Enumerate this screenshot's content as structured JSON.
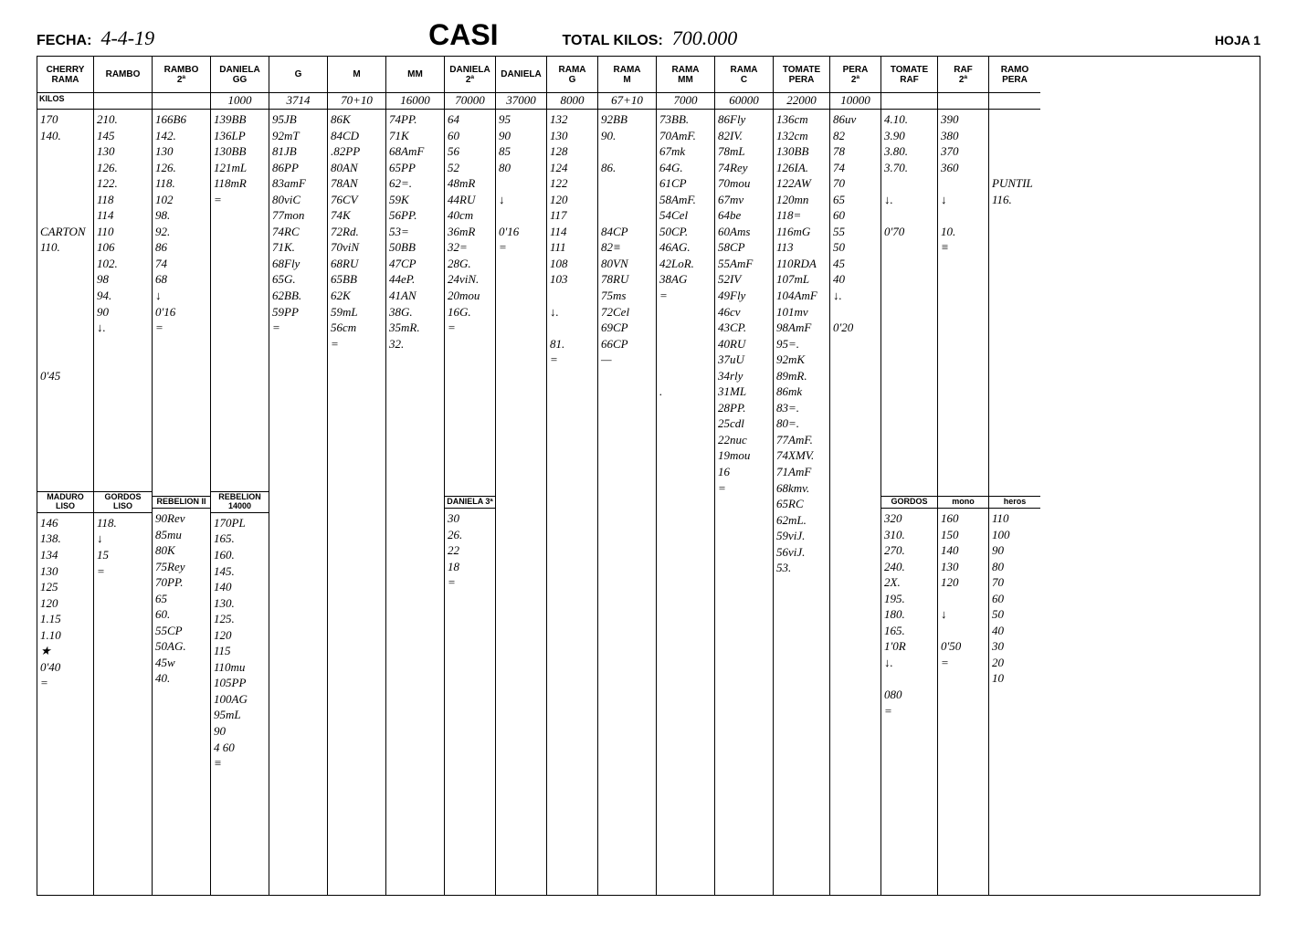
{
  "header": {
    "fecha_label": "FECHA:",
    "fecha_value": "4-4-19",
    "title": "CASI",
    "total_label": "TOTAL KILOS:",
    "total_value": "700.000",
    "hoja": "HOJA 1",
    "kilos_label": "KILOS"
  },
  "columns": [
    {
      "w": "w-cherry",
      "h1": "CHERRY",
      "h2": "RAMA",
      "kilos": "",
      "body": "170\n140.\n\n\n\n\n\nCARTON\n110.\n\n\n\n\n\n\n\n0'45",
      "sub": {
        "h": "MADURO\nLISO",
        "body": "146\n138.\n134\n130\n125\n120\n1.15\n1.10\n★\n0'40\n="
      }
    },
    {
      "w": "w-std",
      "h1": "RAMBO",
      "h2": "",
      "kilos": "",
      "body": "210.\n145\n130\n126.\n122.\n118\n114\n110\n106\n102.\n98\n94.\n90\n↓.\n",
      "sub": {
        "h": "GORDOS\nLISO",
        "body": "118.\n↓\n15\n="
      }
    },
    {
      "w": "w-std",
      "h1": "RAMBO",
      "h2": "2ª",
      "kilos": "",
      "body": "166B6\n142.\n130\n126.\n118.\n102\n98.\n92.\n86\n74\n68\n↓\n0'16\n=",
      "sub": {
        "h": "REBELION\nII",
        "body": "90Rev\n85mu\n80K\n75Rey\n70PP.\n65\n60.\n55CP\n50AG.\n45w\n40."
      }
    },
    {
      "w": "w-std",
      "h1": "DANIELA",
      "h2": "GG",
      "kilos": "1000",
      "body": "139BB\n136LP\n130BB\n121mL\n118mR\n=",
      "sub": {
        "h": "REBELION\n14000",
        "body": "170PL\n165.\n160.\n145.\n140\n130.\n125.\n120\n115\n110mu\n105PP\n100AG\n95mL\n90\n4 60\n≡"
      }
    },
    {
      "w": "w-std",
      "h1": "G",
      "h2": "",
      "kilos": "3714",
      "body": "95JB\n92mT\n81JB\n86PP\n83amF\n80viC\n77mon\n74RC\n71K.\n68Fly\n65G.\n62BB.\n59PP\n="
    },
    {
      "w": "w-std",
      "h1": "M",
      "h2": "",
      "kilos": "70+10",
      "body": "86K\n84CD\n.82PP\n80AN\n78AN\n76CV\n74K\n72Rd.\n70viN\n68RU\n65BB\n62K\n59mL\n56cm\n="
    },
    {
      "w": "w-std",
      "h1": "MM",
      "h2": "",
      "kilos": "16000",
      "body": "74PP.\n71K\n68AmF\n65PP\n62=.\n59K\n56PP.\n53=\n50BB\n47CP\n44eP.\n41AN\n38G.\n35mR.\n32."
    },
    {
      "w": "w-sm",
      "h1": "DANIELA",
      "h2": "2ª",
      "kilos": "70000",
      "body": "64\n60\n56\n52\n48mR\n44RU\n40cm\n36mR\n32=\n28G.\n24viN.\n20mou\n16G.\n=",
      "sub": {
        "h": "DANIELA 3ª",
        "body": "30\n26.\n22\n18\n="
      }
    },
    {
      "w": "w-sm",
      "h1": "DANIELA",
      "h2": "",
      "kilos": "37000",
      "body": "95\n90\n85\n80\n\n↓\n\n0'16\n="
    },
    {
      "w": "w-sm",
      "h1": "RAMA",
      "h2": "G",
      "kilos": "8000",
      "body": "132\n130\n128\n124\n122\n120\n117\n114\n111\n108\n103\n\n↓.\n\n81.\n="
    },
    {
      "w": "w-std",
      "h1": "RAMA",
      "h2": "M",
      "kilos": "67+10",
      "body": "92BB\n90.\n\n86.\n\n\n\n84CP\n82≡\n80VN\n78RU\n75ms\n72Cel\n69CP\n66CP\n—"
    },
    {
      "w": "w-std",
      "h1": "RAMA",
      "h2": "MM",
      "kilos": "7000",
      "body": "73BB.\n70AmF.\n67mk\n64G.\n61CP\n58AmF.\n54Cel\n50CP.\n46AG.\n42LoR.\n38AG\n=\n\n\n\n\n\n."
    },
    {
      "w": "w-std",
      "h1": "RAMA",
      "h2": "C",
      "kilos": "60000",
      "body": "86Fly\n82IV.\n78mL\n74Rey\n70mou\n67mv\n64be\n60Ams\n58CP\n55AmF\n52IV\n49Fly\n46cv\n43CP.\n40RU\n37uU\n34rly\n31ML\n28PP.\n25cdl\n22nuc\n19mou\n16\n="
    },
    {
      "w": "w-tomate",
      "h1": "TOMATE",
      "h2": "PERA",
      "kilos": "22000",
      "body": "136cm\n132cm\n130BB\n126IA.\n122AW\n120mn\n118=\n116mG\n113\n110RDA\n107mL\n104AmF\n101mv\n98AmF\n95=.\n92mK\n89mR.\n86mk\n83=.\n80=.\n77AmF.\n74XMV.\n71AmF\n68kmv.\n65RC\n62mL.\n59viJ.\n56viJ.\n53."
    },
    {
      "w": "w-sm",
      "h1": "PERA",
      "h2": "2ª",
      "kilos": "10000",
      "body": "86uv\n82\n78\n74\n70\n65\n60\n55\n50\n45\n40\n↓.\n\n0'20"
    },
    {
      "w": "w-tomate",
      "h1": "TOMATE",
      "h2": "RAF",
      "kilos": "",
      "body": "4.10.\n3.90\n3.80.\n3.70.\n\n↓.\n\n0'70\n\n",
      "sub": {
        "h": "GORDOS",
        "body": "320\n310.\n270.\n240.\n2X.\n195.\n180.\n165.\n1'0R\n↓.\n\n080\n="
      }
    },
    {
      "w": "w-sm",
      "h1": "RAF",
      "h2": "2ª",
      "kilos": "",
      "body": "390\n380\n370\n360\n\n↓\n\n10.\n≡",
      "sub": {
        "h": "mono",
        "body": "160\n150\n140\n130\n120\n\n↓\n\n0'50\n="
      }
    },
    {
      "w": "w-sm",
      "h1": "RAMO",
      "h2": "PERA",
      "kilos": "",
      "body": "\n\n\n\nPUNTIL\n116.",
      "sub": {
        "h": "heros",
        "body": "110\n100\n90\n80\n70\n60\n50\n40\n30\n20\n10"
      }
    }
  ]
}
